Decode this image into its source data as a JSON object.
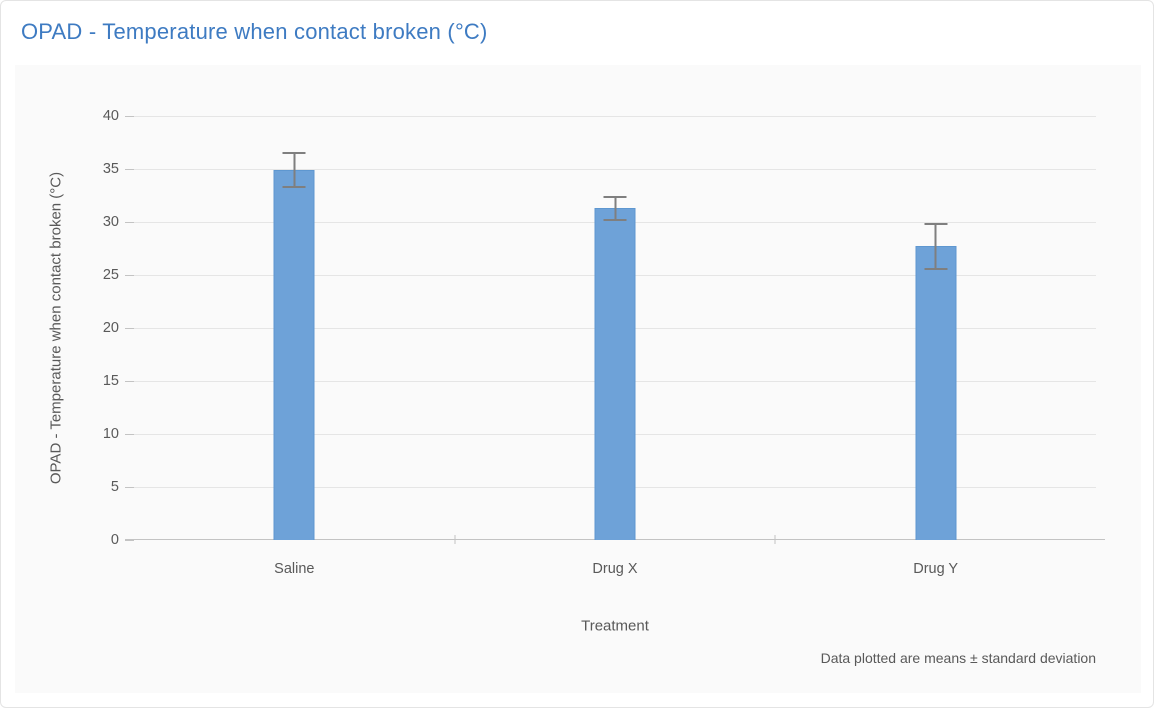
{
  "page": {
    "title": "OPAD - Temperature when contact broken (°C)"
  },
  "chart_data": {
    "type": "bar",
    "title": "OPAD - Temperature when contact broken (°C)",
    "categories": [
      "Saline",
      "Drug X",
      "Drug Y"
    ],
    "series": [
      {
        "name": "OPAD - Temperature when contact broken (°C)",
        "values": [
          34.9,
          31.3,
          27.7
        ],
        "errors": [
          1.7,
          1.2,
          2.2
        ],
        "error_type": "standard deviation"
      }
    ],
    "xlabel": "Treatment",
    "ylabel": "OPAD - Temperature when contact broken (°C)",
    "ylim": [
      0,
      40
    ],
    "yticks": [
      0,
      5,
      10,
      15,
      20,
      25,
      30,
      35,
      40
    ],
    "grid": true,
    "legend": false,
    "footnote": "Data plotted are means ± standard deviation",
    "colors": {
      "bar": "#6ea2d8",
      "bar_border": "#5e97d0",
      "error": "#7f7f7f",
      "title": "#3e7bc2",
      "axis_text": "#595959",
      "gridline": "#e5e5e5",
      "axis_line": "#c3c3c3",
      "panel_bg": "#fafafa",
      "page_bg": "#ffffff"
    }
  }
}
